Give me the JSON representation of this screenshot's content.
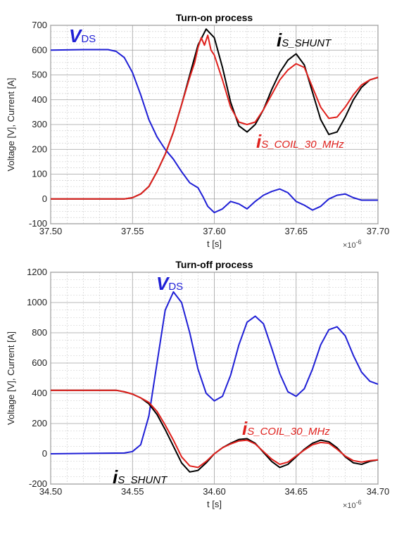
{
  "chart_data": [
    {
      "type": "line",
      "title": "Turn-on process",
      "xlabel": "t [s]",
      "ylabel": "Voltage [V], Current [A]",
      "x_multiplier": "×10",
      "x_multiplier_exp": "-6",
      "xlim": [
        37.5,
        37.7
      ],
      "ylim": [
        -100,
        700
      ],
      "grid": true,
      "xticks": [
        "37.50",
        "37.55",
        "37.60",
        "37.65",
        "37.70"
      ],
      "yticks": [
        "-100",
        "0",
        "100",
        "200",
        "300",
        "400",
        "500",
        "600",
        "700"
      ],
      "annotations": [
        {
          "main": "V",
          "sub": "DS",
          "color": "#1f1fd6"
        },
        {
          "main": "i",
          "sub": "S_SHUNT",
          "color": "#000000"
        },
        {
          "main": "i",
          "sub": "S_COIL_30_MHz",
          "color": "#e0201c"
        }
      ],
      "series": [
        {
          "color": "#1f1fd6",
          "points": [
            [
              37.5,
              600
            ],
            [
              37.52,
              602
            ],
            [
              37.535,
              602
            ],
            [
              37.54,
              595
            ],
            [
              37.545,
              570
            ],
            [
              37.55,
              510
            ],
            [
              37.555,
              420
            ],
            [
              37.56,
              320
            ],
            [
              37.565,
              250
            ],
            [
              37.57,
              200
            ],
            [
              37.575,
              160
            ],
            [
              37.58,
              110
            ],
            [
              37.585,
              65
            ],
            [
              37.59,
              45
            ],
            [
              37.593,
              10
            ],
            [
              37.596,
              -30
            ],
            [
              37.6,
              -55
            ],
            [
              37.605,
              -40
            ],
            [
              37.61,
              -10
            ],
            [
              37.615,
              -20
            ],
            [
              37.62,
              -40
            ],
            [
              37.625,
              -10
            ],
            [
              37.63,
              15
            ],
            [
              37.635,
              30
            ],
            [
              37.64,
              40
            ],
            [
              37.645,
              25
            ],
            [
              37.65,
              -10
            ],
            [
              37.655,
              -25
            ],
            [
              37.66,
              -45
            ],
            [
              37.665,
              -30
            ],
            [
              37.67,
              0
            ],
            [
              37.675,
              15
            ],
            [
              37.68,
              20
            ],
            [
              37.685,
              5
            ],
            [
              37.69,
              -5
            ],
            [
              37.7,
              -5
            ]
          ]
        },
        {
          "color": "#000000",
          "points": [
            [
              37.5,
              0
            ],
            [
              37.545,
              0
            ],
            [
              37.55,
              5
            ],
            [
              37.555,
              20
            ],
            [
              37.56,
              50
            ],
            [
              37.565,
              110
            ],
            [
              37.57,
              180
            ],
            [
              37.575,
              270
            ],
            [
              37.58,
              380
            ],
            [
              37.585,
              500
            ],
            [
              37.59,
              620
            ],
            [
              37.595,
              685
            ],
            [
              37.6,
              650
            ],
            [
              37.605,
              530
            ],
            [
              37.61,
              390
            ],
            [
              37.615,
              295
            ],
            [
              37.62,
              270
            ],
            [
              37.625,
              300
            ],
            [
              37.63,
              360
            ],
            [
              37.635,
              440
            ],
            [
              37.64,
              510
            ],
            [
              37.645,
              560
            ],
            [
              37.65,
              585
            ],
            [
              37.655,
              540
            ],
            [
              37.66,
              430
            ],
            [
              37.665,
              320
            ],
            [
              37.67,
              260
            ],
            [
              37.675,
              270
            ],
            [
              37.68,
              330
            ],
            [
              37.685,
              400
            ],
            [
              37.69,
              450
            ],
            [
              37.695,
              480
            ],
            [
              37.7,
              490
            ]
          ]
        },
        {
          "color": "#e0201c",
          "points": [
            [
              37.5,
              0
            ],
            [
              37.545,
              0
            ],
            [
              37.55,
              5
            ],
            [
              37.555,
              20
            ],
            [
              37.56,
              50
            ],
            [
              37.565,
              110
            ],
            [
              37.57,
              180
            ],
            [
              37.575,
              270
            ],
            [
              37.58,
              380
            ],
            [
              37.585,
              490
            ],
            [
              37.588,
              550
            ],
            [
              37.59,
              610
            ],
            [
              37.592,
              650
            ],
            [
              37.594,
              620
            ],
            [
              37.596,
              660
            ],
            [
              37.598,
              600
            ],
            [
              37.6,
              580
            ],
            [
              37.605,
              480
            ],
            [
              37.61,
              370
            ],
            [
              37.615,
              310
            ],
            [
              37.62,
              300
            ],
            [
              37.625,
              310
            ],
            [
              37.63,
              360
            ],
            [
              37.635,
              420
            ],
            [
              37.64,
              480
            ],
            [
              37.645,
              520
            ],
            [
              37.65,
              545
            ],
            [
              37.655,
              530
            ],
            [
              37.66,
              450
            ],
            [
              37.665,
              370
            ],
            [
              37.67,
              325
            ],
            [
              37.675,
              330
            ],
            [
              37.68,
              370
            ],
            [
              37.685,
              420
            ],
            [
              37.69,
              460
            ],
            [
              37.695,
              480
            ],
            [
              37.7,
              490
            ]
          ]
        }
      ]
    },
    {
      "type": "line",
      "title": "Turn-off process",
      "xlabel": "t [s]",
      "ylabel": "Voltage [V], Current [A]",
      "x_multiplier": "×10",
      "x_multiplier_exp": "-6",
      "xlim": [
        34.5,
        34.7
      ],
      "ylim": [
        -200,
        1200
      ],
      "grid": true,
      "xticks": [
        "34.50",
        "34.55",
        "34.60",
        "34.65",
        "34.70"
      ],
      "yticks": [
        "-200",
        "0",
        "200",
        "400",
        "600",
        "800",
        "1000",
        "1200"
      ],
      "annotations": [
        {
          "main": "V",
          "sub": "DS",
          "color": "#1f1fd6"
        },
        {
          "main": "i",
          "sub": "S_COIL_30_MHz",
          "color": "#e0201c"
        },
        {
          "main": "i",
          "sub": "S_SHUNT",
          "color": "#000000"
        }
      ],
      "series": [
        {
          "color": "#1f1fd6",
          "points": [
            [
              34.5,
              0
            ],
            [
              34.545,
              5
            ],
            [
              34.55,
              15
            ],
            [
              34.555,
              60
            ],
            [
              34.56,
              250
            ],
            [
              34.565,
              600
            ],
            [
              34.57,
              950
            ],
            [
              34.575,
              1070
            ],
            [
              34.58,
              1000
            ],
            [
              34.585,
              800
            ],
            [
              34.59,
              560
            ],
            [
              34.595,
              400
            ],
            [
              34.6,
              350
            ],
            [
              34.605,
              380
            ],
            [
              34.61,
              520
            ],
            [
              34.615,
              720
            ],
            [
              34.62,
              870
            ],
            [
              34.625,
              910
            ],
            [
              34.63,
              860
            ],
            [
              34.635,
              700
            ],
            [
              34.64,
              530
            ],
            [
              34.645,
              410
            ],
            [
              34.65,
              380
            ],
            [
              34.655,
              430
            ],
            [
              34.66,
              560
            ],
            [
              34.665,
              720
            ],
            [
              34.67,
              820
            ],
            [
              34.675,
              840
            ],
            [
              34.68,
              780
            ],
            [
              34.685,
              650
            ],
            [
              34.69,
              540
            ],
            [
              34.695,
              480
            ],
            [
              34.7,
              460
            ]
          ]
        },
        {
          "color": "#000000",
          "points": [
            [
              34.5,
              420
            ],
            [
              34.54,
              420
            ],
            [
              34.545,
              410
            ],
            [
              34.55,
              395
            ],
            [
              34.555,
              370
            ],
            [
              34.56,
              330
            ],
            [
              34.565,
              260
            ],
            [
              34.57,
              160
            ],
            [
              34.575,
              50
            ],
            [
              34.58,
              -60
            ],
            [
              34.585,
              -120
            ],
            [
              34.59,
              -110
            ],
            [
              34.595,
              -60
            ],
            [
              34.6,
              0
            ],
            [
              34.605,
              40
            ],
            [
              34.61,
              70
            ],
            [
              34.615,
              95
            ],
            [
              34.62,
              100
            ],
            [
              34.625,
              70
            ],
            [
              34.63,
              10
            ],
            [
              34.635,
              -50
            ],
            [
              34.64,
              -90
            ],
            [
              34.645,
              -70
            ],
            [
              34.65,
              -20
            ],
            [
              34.655,
              30
            ],
            [
              34.66,
              70
            ],
            [
              34.665,
              90
            ],
            [
              34.67,
              80
            ],
            [
              34.675,
              40
            ],
            [
              34.68,
              -20
            ],
            [
              34.685,
              -60
            ],
            [
              34.69,
              -70
            ],
            [
              34.695,
              -50
            ],
            [
              34.7,
              -40
            ]
          ]
        },
        {
          "color": "#e0201c",
          "points": [
            [
              34.5,
              420
            ],
            [
              34.54,
              420
            ],
            [
              34.545,
              410
            ],
            [
              34.55,
              395
            ],
            [
              34.555,
              370
            ],
            [
              34.56,
              340
            ],
            [
              34.565,
              280
            ],
            [
              34.57,
              190
            ],
            [
              34.575,
              90
            ],
            [
              34.58,
              -20
            ],
            [
              34.585,
              -80
            ],
            [
              34.59,
              -90
            ],
            [
              34.595,
              -50
            ],
            [
              34.6,
              0
            ],
            [
              34.605,
              40
            ],
            [
              34.61,
              65
            ],
            [
              34.615,
              85
            ],
            [
              34.62,
              90
            ],
            [
              34.625,
              65
            ],
            [
              34.63,
              15
            ],
            [
              34.635,
              -35
            ],
            [
              34.64,
              -70
            ],
            [
              34.645,
              -55
            ],
            [
              34.65,
              -15
            ],
            [
              34.655,
              25
            ],
            [
              34.66,
              60
            ],
            [
              34.665,
              75
            ],
            [
              34.67,
              70
            ],
            [
              34.675,
              30
            ],
            [
              34.68,
              -15
            ],
            [
              34.685,
              -45
            ],
            [
              34.69,
              -55
            ],
            [
              34.695,
              -45
            ],
            [
              34.7,
              -40
            ]
          ]
        }
      ]
    }
  ]
}
